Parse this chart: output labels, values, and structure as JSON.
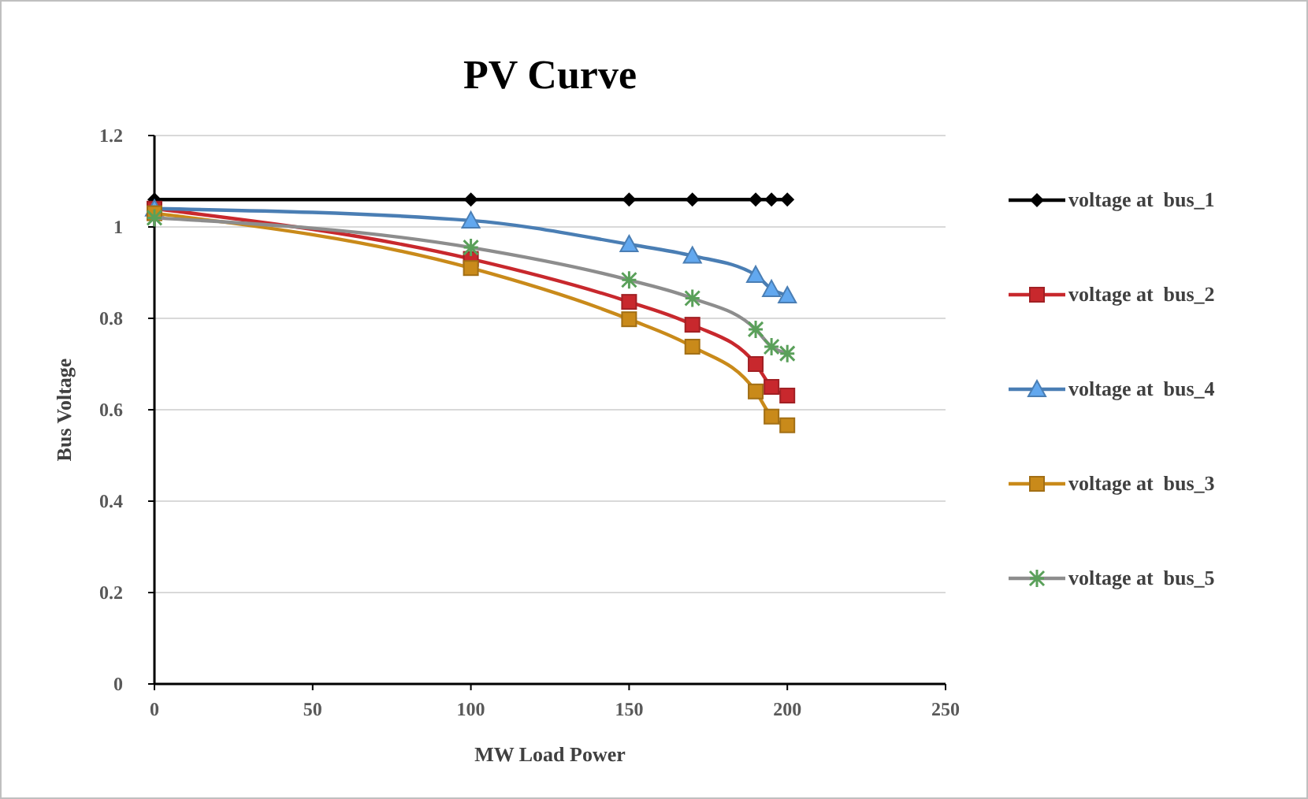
{
  "chart_data": {
    "type": "line",
    "title": "PV Curve",
    "xlabel": "MW Load  Power",
    "ylabel": "Bus Voltage",
    "x": [
      0,
      100,
      150,
      170,
      190,
      195,
      200
    ],
    "xlim": [
      0,
      250
    ],
    "xticks": [
      0,
      50,
      100,
      150,
      200,
      250
    ],
    "ylim": [
      0,
      1.2
    ],
    "yticks": [
      0,
      0.2,
      0.4,
      0.6,
      0.8,
      1,
      1.2
    ],
    "grid": "y",
    "legend": "right",
    "series": [
      {
        "name": "voltage at  bus_1",
        "color": "#000000",
        "marker": "diamond",
        "values": [
          1.06,
          1.06,
          1.06,
          1.06,
          1.06,
          1.06,
          1.06
        ]
      },
      {
        "name": "voltage at  bus_2",
        "color": "#c8282d",
        "marker": "square",
        "values": [
          1.04,
          0.93,
          0.836,
          0.786,
          0.7,
          0.65,
          0.631
        ]
      },
      {
        "name": "voltage at  bus_4",
        "color": "#4a7eb4",
        "marker": "triangle",
        "values": [
          1.04,
          1.014,
          0.962,
          0.937,
          0.895,
          0.864,
          0.85
        ]
      },
      {
        "name": "voltage at  bus_3",
        "color": "#c98a1a",
        "marker": "square",
        "values": [
          1.03,
          0.91,
          0.798,
          0.738,
          0.64,
          0.585,
          0.566
        ]
      },
      {
        "name": "voltage at  bus_5",
        "color": "#8d8d8d",
        "marker": "cross",
        "values": [
          1.02,
          0.955,
          0.884,
          0.844,
          0.776,
          0.738,
          0.723
        ]
      }
    ]
  }
}
